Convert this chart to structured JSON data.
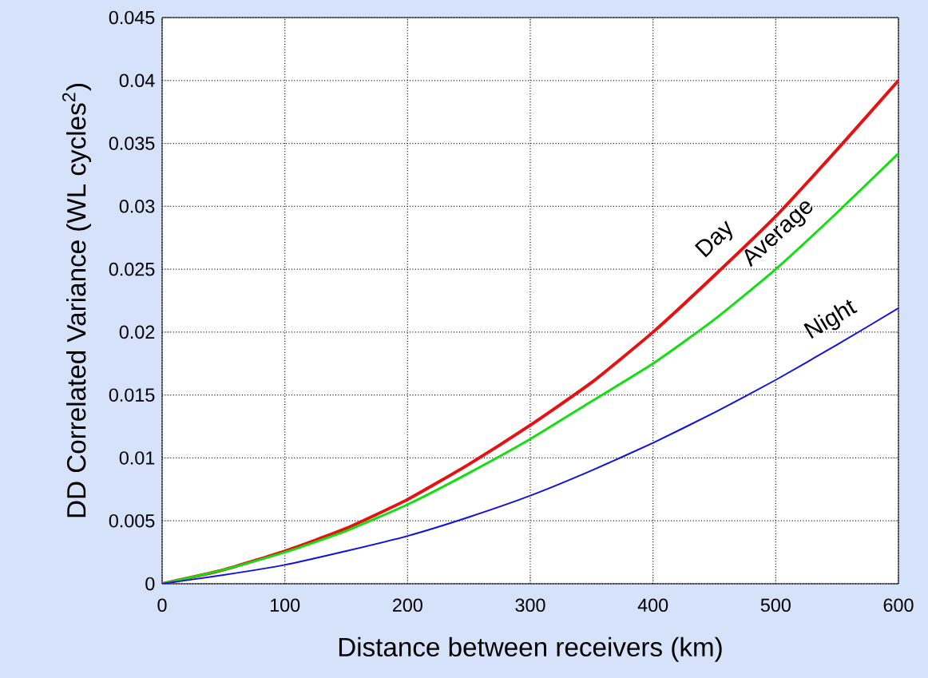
{
  "chart_data": {
    "type": "line",
    "xlabel": "Distance between receivers (km)",
    "ylabel": "DD Correlated Variance (WL cycles$^{2}$)",
    "x": [
      0,
      50,
      100,
      150,
      200,
      250,
      300,
      350,
      400,
      450,
      500,
      550,
      600
    ],
    "series": [
      {
        "name": "Day",
        "color": "#e81010",
        "values": [
          0,
          0.0011,
          0.0026,
          0.0044,
          0.0067,
          0.0095,
          0.0126,
          0.016,
          0.02,
          0.0245,
          0.0292,
          0.0345,
          0.04
        ]
      },
      {
        "name": "Average",
        "color": "#10e010",
        "values": [
          0,
          0.0011,
          0.0025,
          0.0042,
          0.0063,
          0.0088,
          0.0115,
          0.0145,
          0.0175,
          0.021,
          0.025,
          0.0295,
          0.0342
        ]
      },
      {
        "name": "Night",
        "color": "#1010e0",
        "values": [
          0,
          0.0007,
          0.0015,
          0.0026,
          0.0038,
          0.0053,
          0.007,
          0.009,
          0.0112,
          0.0136,
          0.0162,
          0.019,
          0.0219
        ]
      }
    ],
    "xlim": [
      0,
      600
    ],
    "ylim": [
      0,
      0.045
    ],
    "xticks": [
      0,
      100,
      200,
      300,
      400,
      500,
      600
    ],
    "yticks": [
      0,
      0.005,
      0.01,
      0.015,
      0.02,
      0.025,
      0.03,
      0.035,
      0.04,
      0.045
    ],
    "grid": true,
    "legend": false,
    "marker": "none",
    "line_style": "solid"
  }
}
